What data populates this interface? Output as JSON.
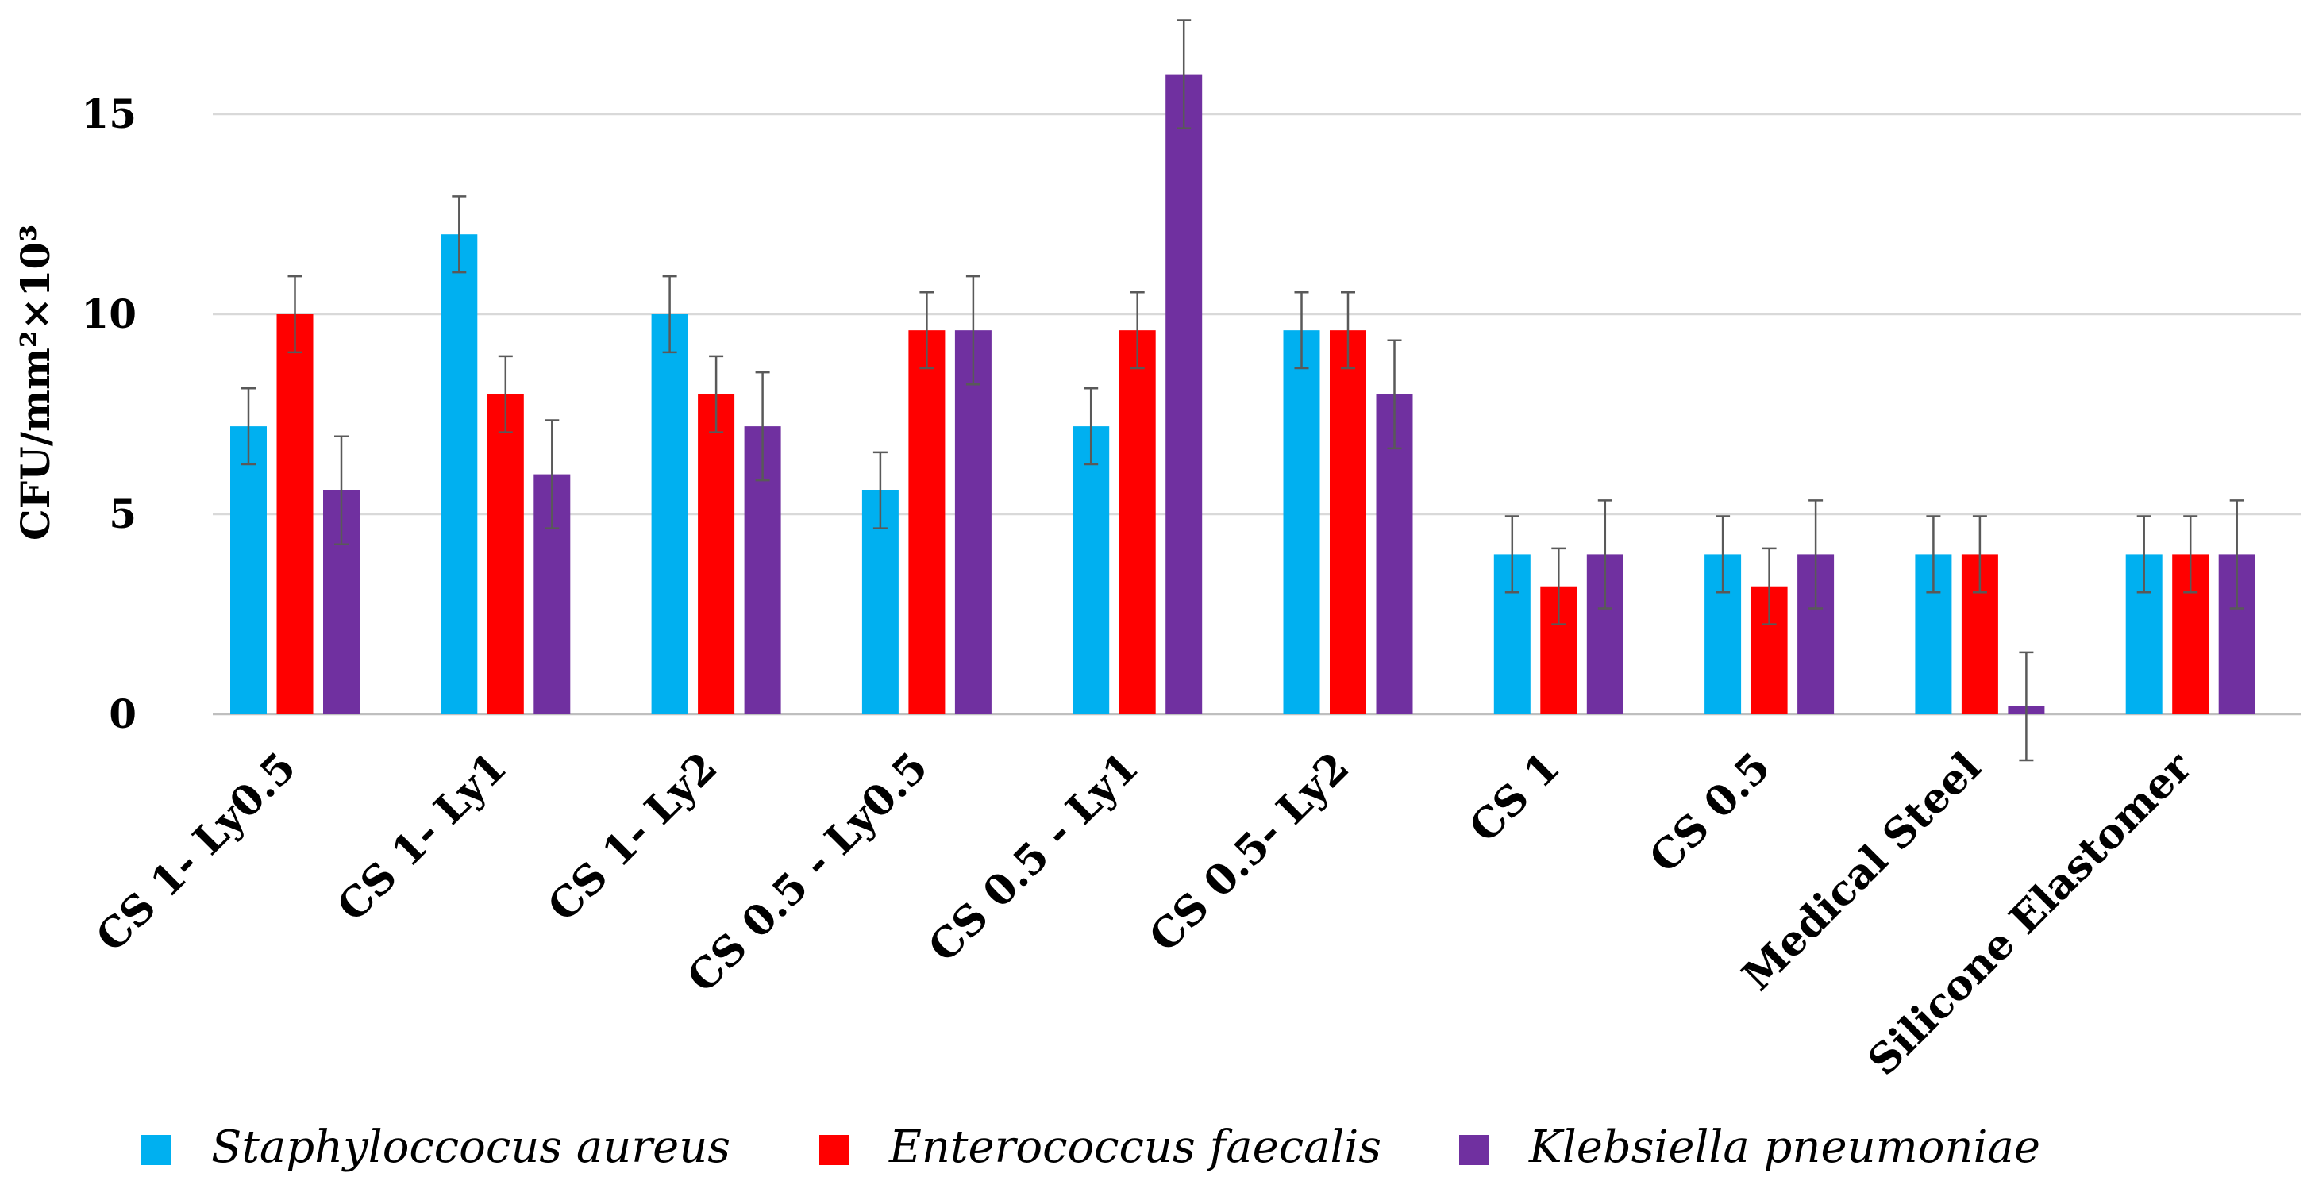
{
  "chart_data": {
    "type": "bar",
    "title": "",
    "xlabel": "",
    "ylabel": "CFU/mm²×10³",
    "ylim": [
      0,
      17.5
    ],
    "yticks": [
      0,
      5,
      10,
      15
    ],
    "grid": true,
    "legend_position": "bottom",
    "categories": [
      "CS 1- Ly0.5",
      "CS 1- Ly1",
      "CS 1- Ly2",
      "CS 0.5 - Ly0.5",
      "CS 0.5 - Ly1",
      "CS 0.5- Ly2",
      "CS 1",
      "CS 0.5",
      "Medical Steel",
      "Silicone Elastomer"
    ],
    "series": [
      {
        "name": "Staphyloccocus aureus",
        "color": "#00B0F0",
        "values": [
          7.2,
          12.0,
          10.0,
          5.6,
          7.2,
          9.6,
          4.0,
          4.0,
          4.0,
          4.0
        ],
        "errors": [
          0.95,
          0.95,
          0.95,
          0.95,
          0.95,
          0.95,
          0.95,
          0.95,
          0.95,
          0.95
        ]
      },
      {
        "name": "Enterococcus faecalis",
        "color": "#FF0000",
        "values": [
          10.0,
          8.0,
          8.0,
          9.6,
          9.6,
          9.6,
          3.2,
          3.2,
          4.0,
          4.0
        ],
        "errors": [
          0.95,
          0.95,
          0.95,
          0.95,
          0.95,
          0.95,
          0.95,
          0.95,
          0.95,
          0.95
        ]
      },
      {
        "name": "Klebsiella pneumoniae",
        "color": "#7030A0",
        "values": [
          5.6,
          6.0,
          7.2,
          9.6,
          16.0,
          8.0,
          4.0,
          4.0,
          0.2,
          4.0
        ],
        "errors": [
          1.35,
          1.35,
          1.35,
          1.35,
          1.35,
          1.35,
          1.35,
          1.35,
          1.35,
          1.35
        ]
      }
    ]
  }
}
